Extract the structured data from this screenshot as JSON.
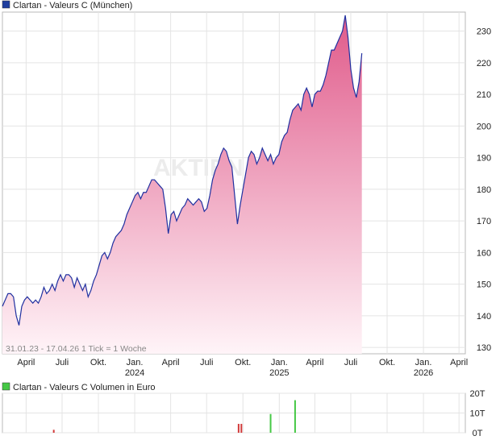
{
  "chart_data": [
    {
      "type": "area",
      "title": "Clartan - Valeurs C (München)",
      "legend_color": "#1f3f9f",
      "line_color": "#2030a0",
      "fill_top_color": "#e05a8a",
      "fill_bottom_color": "#fff4f8",
      "grid": true,
      "ylim": [
        128,
        236
      ],
      "y_ticks": [
        130,
        140,
        150,
        160,
        170,
        180,
        190,
        200,
        210,
        220,
        230
      ],
      "x_range": [
        "2023-01-31",
        "2026-04-17"
      ],
      "x_ticks": [
        {
          "date": "2023-04-01",
          "label": "April",
          "year": ""
        },
        {
          "date": "2023-07-01",
          "label": "Juli",
          "year": ""
        },
        {
          "date": "2023-10-01",
          "label": "Okt.",
          "year": ""
        },
        {
          "date": "2024-01-01",
          "label": "Jan.",
          "year": "2024"
        },
        {
          "date": "2024-04-01",
          "label": "April",
          "year": ""
        },
        {
          "date": "2024-07-01",
          "label": "Juli",
          "year": ""
        },
        {
          "date": "2024-10-01",
          "label": "Okt.",
          "year": ""
        },
        {
          "date": "2025-01-01",
          "label": "Jan.",
          "year": "2025"
        },
        {
          "date": "2025-04-01",
          "label": "April",
          "year": ""
        },
        {
          "date": "2025-07-01",
          "label": "Juli",
          "year": ""
        },
        {
          "date": "2025-10-01",
          "label": "Okt.",
          "year": ""
        },
        {
          "date": "2026-01-01",
          "label": "Jan.",
          "year": "2026"
        },
        {
          "date": "2026-04-01",
          "label": "April",
          "year": ""
        }
      ],
      "footer_text": "31.01.23 - 17.04.26   1 Tick = 1 Woche",
      "series": [
        {
          "values": [
            [
              "2023-01-31",
              143
            ],
            [
              "2023-02-07",
              145
            ],
            [
              "2023-02-14",
              147
            ],
            [
              "2023-02-21",
              147
            ],
            [
              "2023-02-28",
              146
            ],
            [
              "2023-03-07",
              140
            ],
            [
              "2023-03-14",
              137
            ],
            [
              "2023-03-21",
              143
            ],
            [
              "2023-03-28",
              145
            ],
            [
              "2023-04-04",
              146
            ],
            [
              "2023-04-11",
              145
            ],
            [
              "2023-04-18",
              144
            ],
            [
              "2023-04-25",
              145
            ],
            [
              "2023-05-02",
              144
            ],
            [
              "2023-05-09",
              146
            ],
            [
              "2023-05-16",
              149
            ],
            [
              "2023-05-23",
              147
            ],
            [
              "2023-05-30",
              148
            ],
            [
              "2023-06-06",
              150
            ],
            [
              "2023-06-13",
              148
            ],
            [
              "2023-06-20",
              151
            ],
            [
              "2023-06-27",
              153
            ],
            [
              "2023-07-04",
              151
            ],
            [
              "2023-07-11",
              153
            ],
            [
              "2023-07-18",
              153
            ],
            [
              "2023-07-25",
              152
            ],
            [
              "2023-08-01",
              149
            ],
            [
              "2023-08-08",
              152
            ],
            [
              "2023-08-15",
              150
            ],
            [
              "2023-08-22",
              148
            ],
            [
              "2023-08-29",
              150
            ],
            [
              "2023-09-05",
              146
            ],
            [
              "2023-09-12",
              148
            ],
            [
              "2023-09-19",
              151
            ],
            [
              "2023-09-26",
              153
            ],
            [
              "2023-10-03",
              156
            ],
            [
              "2023-10-10",
              159
            ],
            [
              "2023-10-17",
              160
            ],
            [
              "2023-10-24",
              158
            ],
            [
              "2023-10-31",
              160
            ],
            [
              "2023-11-07",
              163
            ],
            [
              "2023-11-14",
              165
            ],
            [
              "2023-11-21",
              166
            ],
            [
              "2023-11-28",
              167
            ],
            [
              "2023-12-05",
              169
            ],
            [
              "2023-12-12",
              172
            ],
            [
              "2023-12-19",
              174
            ],
            [
              "2023-12-26",
              176
            ],
            [
              "2024-01-02",
              178
            ],
            [
              "2024-01-09",
              179
            ],
            [
              "2024-01-16",
              177
            ],
            [
              "2024-01-23",
              179
            ],
            [
              "2024-01-30",
              179
            ],
            [
              "2024-02-06",
              181
            ],
            [
              "2024-02-13",
              183
            ],
            [
              "2024-02-20",
              183
            ],
            [
              "2024-02-27",
              182
            ],
            [
              "2024-03-05",
              181
            ],
            [
              "2024-03-12",
              180
            ],
            [
              "2024-03-19",
              174
            ],
            [
              "2024-03-26",
              166
            ],
            [
              "2024-04-02",
              172
            ],
            [
              "2024-04-09",
              173
            ],
            [
              "2024-04-16",
              170
            ],
            [
              "2024-04-23",
              172
            ],
            [
              "2024-04-30",
              174
            ],
            [
              "2024-05-07",
              175
            ],
            [
              "2024-05-14",
              177
            ],
            [
              "2024-05-21",
              176
            ],
            [
              "2024-05-28",
              175
            ],
            [
              "2024-06-04",
              176
            ],
            [
              "2024-06-11",
              177
            ],
            [
              "2024-06-18",
              176
            ],
            [
              "2024-06-25",
              173
            ],
            [
              "2024-07-02",
              174
            ],
            [
              "2024-07-09",
              178
            ],
            [
              "2024-07-16",
              183
            ],
            [
              "2024-07-23",
              186
            ],
            [
              "2024-07-30",
              188
            ],
            [
              "2024-08-06",
              191
            ],
            [
              "2024-08-13",
              193
            ],
            [
              "2024-08-20",
              192
            ],
            [
              "2024-08-27",
              189
            ],
            [
              "2024-09-03",
              187
            ],
            [
              "2024-09-10",
              178
            ],
            [
              "2024-09-17",
              169
            ],
            [
              "2024-09-24",
              175
            ],
            [
              "2024-10-01",
              180
            ],
            [
              "2024-10-08",
              185
            ],
            [
              "2024-10-15",
              190
            ],
            [
              "2024-10-22",
              192
            ],
            [
              "2024-10-29",
              191
            ],
            [
              "2024-11-05",
              188
            ],
            [
              "2024-11-12",
              190
            ],
            [
              "2024-11-19",
              193
            ],
            [
              "2024-11-26",
              191
            ],
            [
              "2024-12-03",
              189
            ],
            [
              "2024-12-10",
              191
            ],
            [
              "2024-12-17",
              188
            ],
            [
              "2024-12-24",
              190
            ],
            [
              "2024-12-31",
              191
            ],
            [
              "2025-01-07",
              195
            ],
            [
              "2025-01-14",
              197
            ],
            [
              "2025-01-21",
              198
            ],
            [
              "2025-01-28",
              202
            ],
            [
              "2025-02-04",
              205
            ],
            [
              "2025-02-11",
              206
            ],
            [
              "2025-02-18",
              207
            ],
            [
              "2025-02-25",
              205
            ],
            [
              "2025-03-04",
              210
            ],
            [
              "2025-03-11",
              212
            ],
            [
              "2025-03-18",
              210
            ],
            [
              "2025-03-25",
              206
            ],
            [
              "2025-04-01",
              210
            ],
            [
              "2025-04-08",
              211
            ],
            [
              "2025-04-15",
              211
            ],
            [
              "2025-04-22",
              213
            ],
            [
              "2025-04-29",
              216
            ],
            [
              "2025-05-06",
              220
            ],
            [
              "2025-05-13",
              224
            ],
            [
              "2025-05-20",
              224
            ],
            [
              "2025-05-27",
              226
            ],
            [
              "2025-06-03",
              228
            ],
            [
              "2025-06-10",
              230
            ],
            [
              "2025-06-17",
              235
            ],
            [
              "2025-06-24",
              228
            ],
            [
              "2025-07-01",
              218
            ],
            [
              "2025-07-08",
              212
            ],
            [
              "2025-07-15",
              209
            ],
            [
              "2025-07-22",
              214
            ],
            [
              "2025-07-29",
              223
            ]
          ]
        }
      ]
    },
    {
      "type": "bar",
      "title": "Clartan - Valeurs C Volumen in Euro",
      "legend_color": "#45c845",
      "ylim": [
        0,
        20
      ],
      "y_ticks": [
        {
          "value": 0,
          "label": "0T"
        },
        {
          "value": 10,
          "label": "10T"
        },
        {
          "value": 20,
          "label": "20T"
        }
      ],
      "grid": true,
      "bars": [
        {
          "date": "2023-06-10",
          "value": 1.5,
          "color": "#d23a3a"
        },
        {
          "date": "2024-09-20",
          "value": 4.5,
          "color": "#d23a3a"
        },
        {
          "date": "2024-09-27",
          "value": 4.5,
          "color": "#d23a3a"
        },
        {
          "date": "2024-12-10",
          "value": 9.5,
          "color": "#45c845"
        },
        {
          "date": "2025-02-10",
          "value": 16.5,
          "color": "#45c845"
        }
      ]
    }
  ],
  "watermark": "AKTIEN"
}
